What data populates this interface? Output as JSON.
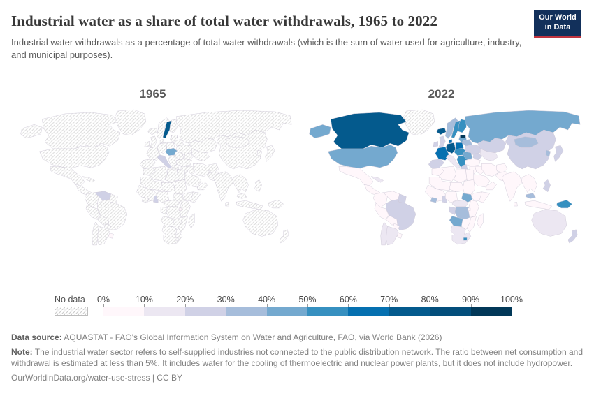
{
  "header": {
    "title": "Industrial water as a share of total water withdrawals, 1965 to 2022",
    "subtitle": "Industrial water withdrawals as a percentage of total water withdrawals (which is the sum of water used for agriculture, industry, and municipal purposes).",
    "logo_line1": "Our World",
    "logo_line2": "in Data",
    "logo_bg_color": "#12305b",
    "logo_accent_color": "#c0343f"
  },
  "legend": {
    "no_data_label": "No data",
    "ticks": [
      "0%",
      "10%",
      "20%",
      "30%",
      "40%",
      "50%",
      "60%",
      "70%",
      "80%",
      "90%",
      "100%"
    ],
    "colors": [
      "#fff7fb",
      "#ece7f2",
      "#d0d1e6",
      "#a6bddb",
      "#74a9cf",
      "#3690c0",
      "#0570b0",
      "#045a8d",
      "#034e7b",
      "#023858"
    ],
    "no_data_pattern": "diagonal-hatch"
  },
  "footer": {
    "source_label": "Data source:",
    "source": "AQUASTAT - FAO's Global Information System on Water and Agriculture, FAO, via World Bank (2026)",
    "note_label": "Note:",
    "note": "The industrial water sector refers to self-supplied industries not connected to the public distribution network. The ratio between net consumption and withdrawal is estimated at less than 5%. It includes water for the cooling of thermoelectric and nuclear power plants, but it does not include hydropower.",
    "link": "OurWorldinData.org/water-use-stress | CC BY"
  },
  "chart_data": {
    "type": "heatmap",
    "subtype": "world-choropleth-pair",
    "title": "Industrial water as a share of total water withdrawals",
    "unit": "%",
    "bin_edges": [
      0,
      10,
      20,
      30,
      40,
      50,
      60,
      70,
      80,
      90,
      100
    ],
    "bin_colors": [
      "#fff7fb",
      "#ece7f2",
      "#d0d1e6",
      "#a6bddb",
      "#74a9cf",
      "#3690c0",
      "#0570b0",
      "#045a8d",
      "#034e7b",
      "#023858"
    ],
    "no_data": "diagonal-hatch",
    "legend_position": "bottom",
    "series": [
      {
        "name": "1965",
        "default": "nodata",
        "regions": {
          "sweden": 75,
          "czech_hun": 45,
          "italy": 20,
          "venezuela": 20,
          "ghana": 20,
          "uruguay": 5,
          "burundi": 3
        }
      },
      {
        "name": "2022",
        "default": 5,
        "regions": {
          "greenland": "nodata",
          "canada": 78,
          "alaska": 45,
          "usa": 45,
          "mexico": 5,
          "central_america": 5,
          "cuba": 15,
          "colombia": 3,
          "venezuela": 5,
          "guyanas": 25,
          "brazil": 25,
          "peru": 3,
          "bolivia": 5,
          "paraguay": 5,
          "chile": 15,
          "argentina": 15,
          "uruguay": 5,
          "iceland": 75,
          "ireland": 25,
          "uk": 25,
          "norway": 35,
          "sweden": 55,
          "finland": 55,
          "russia": 42,
          "baltics": 45,
          "estonia": 95,
          "belarus": 35,
          "ukraine": 25,
          "denmark": 65,
          "germany": 75,
          "poland": 65,
          "france": 68,
          "spain": 25,
          "italy": 15,
          "czech_hun": 55,
          "balkans": 55,
          "greece": 25,
          "romania": 45,
          "kazakhstan": 25,
          "central_asia": 15,
          "caucasus": 25,
          "turkey": 5,
          "syria_levant": 5,
          "iraq": 8,
          "iran": 5,
          "saudi": 5,
          "yemen_oman": 5,
          "afghanistan": 3,
          "pakistan": 3,
          "india": 3,
          "sri_lanka": 5,
          "china": 25,
          "mongolia": 35,
          "korea": 35,
          "japan": 25,
          "myanmar_indochina": 5,
          "malaysia": 35,
          "indonesia": 5,
          "philippines": 25,
          "png": 55,
          "australia": 15,
          "new_zealand": 25,
          "morocco": 5,
          "algeria": 5,
          "libya": 5,
          "egypt": 8,
          "mauritania_mali": 3,
          "niger_chad": 3,
          "sudan": 3,
          "west_africa": 5,
          "liberia_sl": 35,
          "ghana": 25,
          "nigeria": 5,
          "ethiopia": 3,
          "somalia": 3,
          "south_sudan": 45,
          "cameroon_car": 15,
          "gabon_congo": 25,
          "drc": 30,
          "east_africa": 5,
          "burundi": 5,
          "angola": 45,
          "zambia_zw": 8,
          "mozambique": 5,
          "namibia_botswana": 15,
          "south_africa": 15,
          "lesotho": 55,
          "madagascar": 3
        }
      }
    ]
  }
}
